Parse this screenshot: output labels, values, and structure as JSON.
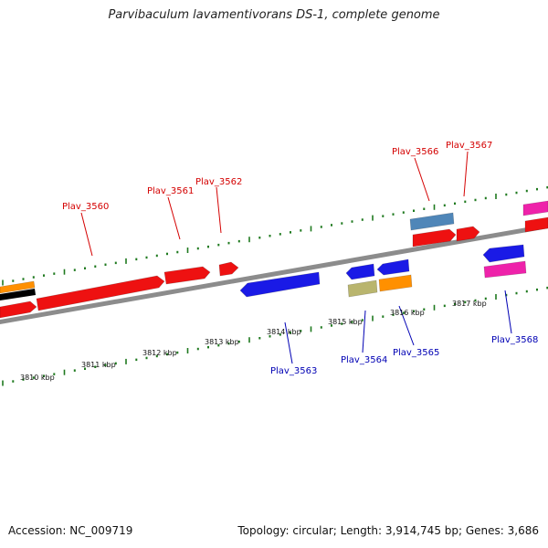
{
  "title": "Parvibaculum lavamentivorans DS-1, complete genome",
  "footer": {
    "accession": "Accession: NC_009719",
    "summary": "Topology: circular; Length: 3,914,745 bp; Genes: 3,686"
  },
  "colors": {
    "backbone": "#8c8c8c",
    "tick": "#1f7a1f",
    "forward_label": "#d40000",
    "reverse_label": "#0000b4",
    "scale_label": "#111111"
  },
  "scale_labels": [
    "3810 kbp",
    "3811 kbp",
    "3812 kbp",
    "3813 kbp",
    "3814 kbp",
    "3815 kbp",
    "3816 kbp",
    "3817 kbp"
  ],
  "genes": [
    {
      "label": "Plav_3560",
      "strand": "forward",
      "color": "#ee1111"
    },
    {
      "label": "Plav_3561",
      "strand": "forward",
      "color": "#ee1111"
    },
    {
      "label": "Plav_3562",
      "strand": "forward",
      "color": "#ee1111"
    },
    {
      "label": "Plav_3563",
      "strand": "reverse",
      "color": "#1a1ae6"
    },
    {
      "label": "Plav_3564",
      "strand": "reverse",
      "color": "#1a1ae6"
    },
    {
      "label": "Plav_3565",
      "strand": "reverse",
      "color": "#1a1ae6"
    },
    {
      "label": "Plav_3566",
      "strand": "forward",
      "color": "#ee1111"
    },
    {
      "label": "Plav_3567",
      "strand": "forward",
      "color": "#ee1111"
    },
    {
      "label": "Plav_3568",
      "strand": "reverse",
      "color": "#1a1ae6"
    }
  ],
  "extra_features": [
    {
      "name": "blue-gray-feature",
      "color": "#4f86b8"
    },
    {
      "name": "olive-feature",
      "color": "#b9b56e"
    },
    {
      "name": "orange-feature-middle",
      "color": "#ff9000"
    },
    {
      "name": "magenta-feature-right",
      "color": "#ee22aa"
    },
    {
      "name": "gray-feature-right",
      "color": "#777777"
    },
    {
      "name": "magenta-feature-left",
      "color": "#ee22aa"
    },
    {
      "name": "orange-feature-left",
      "color": "#ff9000"
    }
  ]
}
